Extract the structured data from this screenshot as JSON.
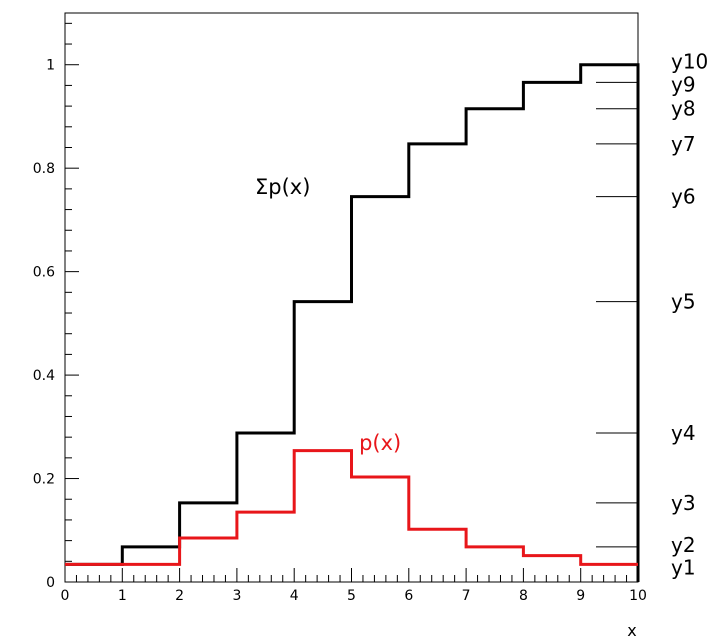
{
  "chart_data": {
    "type": "line",
    "step": true,
    "title": "",
    "xlabel": "x",
    "ylabel": "",
    "xlim": [
      0,
      10
    ],
    "ylim": [
      0,
      1.1
    ],
    "grid": false,
    "legend": "none",
    "x_bins": [
      0,
      1,
      2,
      3,
      4,
      5,
      6,
      7,
      8,
      9,
      10
    ],
    "x_ticks": [
      "0",
      "1",
      "2",
      "3",
      "4",
      "5",
      "6",
      "7",
      "8",
      "9",
      "10"
    ],
    "y_ticks": [
      {
        "value": 0,
        "label": "0"
      },
      {
        "value": 0.2,
        "label": "0.2"
      },
      {
        "value": 0.4,
        "label": "0.4"
      },
      {
        "value": 0.6,
        "label": "0.6"
      },
      {
        "value": 0.8,
        "label": "0.8"
      },
      {
        "value": 1,
        "label": "1"
      }
    ],
    "series": [
      {
        "label": "Σp(x)",
        "color": "#000000",
        "values": [
          0.034,
          0.068,
          0.153,
          0.288,
          0.542,
          0.745,
          0.847,
          0.915,
          0.966,
          1.0
        ]
      },
      {
        "label": "p(x)",
        "color": "#e8161a",
        "values": [
          0.034,
          0.034,
          0.085,
          0.135,
          0.254,
          0.203,
          0.102,
          0.068,
          0.051,
          0.034
        ]
      }
    ],
    "right_axis_labels": [
      {
        "label": "y1",
        "value": 0.034
      },
      {
        "label": "y2",
        "value": 0.068
      },
      {
        "label": "y3",
        "value": 0.153
      },
      {
        "label": "y4",
        "value": 0.288
      },
      {
        "label": "y5",
        "value": 0.542
      },
      {
        "label": "y6",
        "value": 0.745
      },
      {
        "label": "y7",
        "value": 0.847
      },
      {
        "label": "y8",
        "value": 0.915
      },
      {
        "label": "y9",
        "value": 0.966
      },
      {
        "label": "y10",
        "value": 1.0
      }
    ]
  }
}
